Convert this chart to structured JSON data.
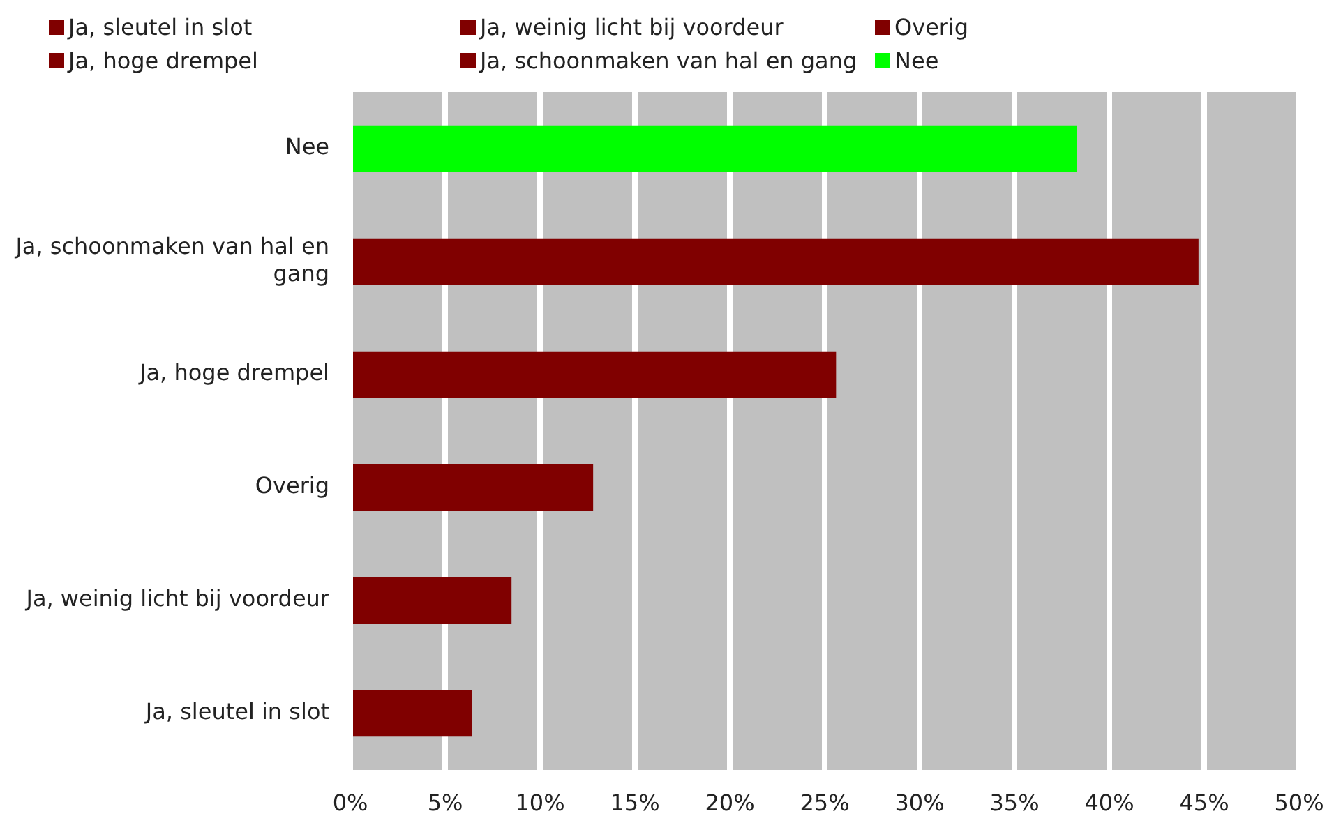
{
  "chart_data": {
    "type": "bar",
    "orientation": "horizontal",
    "categories": [
      "Nee",
      "Ja, schoonmaken van hal en gang",
      "Ja, hoge drempel",
      "Overig",
      "Ja, weinig licht bij voordeur",
      "Ja, sleutel in slot"
    ],
    "series": [
      {
        "name": "Ja, sleutel in slot",
        "color": "#800000",
        "values": [
          null,
          null,
          null,
          null,
          null,
          6.4
        ]
      },
      {
        "name": "Ja, weinig licht bij voordeur",
        "color": "#800000",
        "values": [
          null,
          null,
          null,
          null,
          8.5,
          null
        ]
      },
      {
        "name": "Overig",
        "color": "#800000",
        "values": [
          null,
          null,
          null,
          12.8,
          null,
          null
        ]
      },
      {
        "name": "Ja, hoge drempel",
        "color": "#800000",
        "values": [
          null,
          null,
          25.6,
          null,
          null,
          null
        ]
      },
      {
        "name": "Ja, schoonmaken van hal en gang",
        "color": "#800000",
        "values": [
          null,
          44.7,
          null,
          null,
          null,
          null
        ]
      },
      {
        "name": "Nee",
        "color": "#00ff00",
        "values": [
          38.3,
          null,
          null,
          null,
          null,
          null
        ]
      }
    ],
    "xlim": [
      0,
      50
    ],
    "xticks": [
      {
        "value": 0,
        "label": "0%"
      },
      {
        "value": 5,
        "label": "5%"
      },
      {
        "value": 10,
        "label": "10%"
      },
      {
        "value": 15,
        "label": "15%"
      },
      {
        "value": 20,
        "label": "20%"
      },
      {
        "value": 25,
        "label": "25%"
      },
      {
        "value": 30,
        "label": "30%"
      },
      {
        "value": 35,
        "label": "35%"
      },
      {
        "value": 40,
        "label": "40%"
      },
      {
        "value": 45,
        "label": "45%"
      },
      {
        "value": 50,
        "label": "50%"
      }
    ],
    "grid": "x",
    "legend": "top"
  }
}
